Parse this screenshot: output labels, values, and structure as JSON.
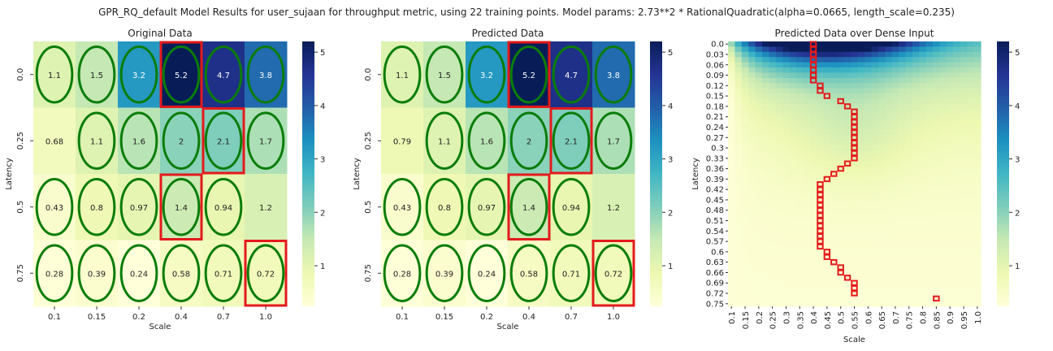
{
  "figure": {
    "suptitle": "GPR_RQ_default Model Results for user_sujaan for throughput metric, using 22 training points. Model params: 2.73**2 * RationalQuadratic(alpha=0.0665, length_scale=0.235)"
  },
  "colors": {
    "ellipse": "#0a7d0a",
    "highlight": "#e31a1c",
    "cmap": [
      "#ffffd9",
      "#edf8b1",
      "#c7e9b4",
      "#7fcdbb",
      "#41b6c4",
      "#1d91c0",
      "#225ea8",
      "#253494",
      "#081d58"
    ]
  },
  "chart_data": [
    {
      "type": "heatmap",
      "title": "Original Data",
      "xlabel": "Scale",
      "ylabel": "Latency",
      "x": [
        "0.1",
        "0.15",
        "0.2",
        "0.4",
        "0.7",
        "1.0"
      ],
      "y": [
        "0.0",
        "0.25",
        "0.5",
        "0.75"
      ],
      "values": [
        [
          1.1,
          1.5,
          3.2,
          5.2,
          4.7,
          3.8
        ],
        [
          0.68,
          1.1,
          1.6,
          2,
          2.1,
          1.7
        ],
        [
          0.43,
          0.8,
          0.97,
          1.4,
          0.94,
          1.2
        ],
        [
          0.28,
          0.39,
          0.24,
          0.58,
          0.71,
          0.72
        ]
      ],
      "value_labels": [
        [
          "1.1",
          "1.5",
          "3.2",
          "5.2",
          "4.7",
          "3.8"
        ],
        [
          "0.68",
          "1.1",
          "1.6",
          "2",
          "2.1",
          "1.7"
        ],
        [
          "0.43",
          "0.8",
          "0.97",
          "1.4",
          "0.94",
          "1.2"
        ],
        [
          "0.28",
          "0.39",
          "0.24",
          "0.58",
          "0.71",
          "0.72"
        ]
      ],
      "training_points": [
        [
          0,
          0
        ],
        [
          0,
          1
        ],
        [
          0,
          2
        ],
        [
          0,
          3
        ],
        [
          0,
          4
        ],
        [
          0,
          5
        ],
        [
          1,
          1
        ],
        [
          1,
          2
        ],
        [
          1,
          3
        ],
        [
          1,
          4
        ],
        [
          1,
          5
        ],
        [
          2,
          0
        ],
        [
          2,
          1
        ],
        [
          2,
          2
        ],
        [
          2,
          3
        ],
        [
          2,
          4
        ],
        [
          3,
          0
        ],
        [
          3,
          1
        ],
        [
          3,
          2
        ],
        [
          3,
          3
        ],
        [
          3,
          4
        ],
        [
          3,
          5
        ]
      ],
      "highlighted": [
        [
          0,
          3
        ],
        [
          1,
          4
        ],
        [
          2,
          3
        ],
        [
          3,
          5
        ]
      ],
      "vmin": 0.24,
      "vmax": 5.2,
      "colorbar_ticks": [
        "1",
        "2",
        "3",
        "4",
        "5"
      ]
    },
    {
      "type": "heatmap",
      "title": "Predicted Data",
      "xlabel": "Scale",
      "ylabel": "Latency",
      "x": [
        "0.1",
        "0.15",
        "0.2",
        "0.4",
        "0.7",
        "1.0"
      ],
      "y": [
        "0.0",
        "0.25",
        "0.5",
        "0.75"
      ],
      "values": [
        [
          1.1,
          1.5,
          3.2,
          5.2,
          4.7,
          3.8
        ],
        [
          0.79,
          1.1,
          1.6,
          2,
          2.1,
          1.7
        ],
        [
          0.43,
          0.8,
          0.97,
          1.4,
          0.94,
          1.2
        ],
        [
          0.28,
          0.39,
          0.24,
          0.58,
          0.71,
          0.72
        ]
      ],
      "value_labels": [
        [
          "1.1",
          "1.5",
          "3.2",
          "5.2",
          "4.7",
          "3.8"
        ],
        [
          "0.79",
          "1.1",
          "1.6",
          "2",
          "2.1",
          "1.7"
        ],
        [
          "0.43",
          "0.8",
          "0.97",
          "1.4",
          "0.94",
          "1.2"
        ],
        [
          "0.28",
          "0.39",
          "0.24",
          "0.58",
          "0.71",
          "0.72"
        ]
      ],
      "training_points": [
        [
          0,
          0
        ],
        [
          0,
          1
        ],
        [
          0,
          2
        ],
        [
          0,
          3
        ],
        [
          0,
          4
        ],
        [
          0,
          5
        ],
        [
          1,
          1
        ],
        [
          1,
          2
        ],
        [
          1,
          3
        ],
        [
          1,
          4
        ],
        [
          1,
          5
        ],
        [
          2,
          0
        ],
        [
          2,
          1
        ],
        [
          2,
          2
        ],
        [
          2,
          3
        ],
        [
          2,
          4
        ],
        [
          3,
          0
        ],
        [
          3,
          1
        ],
        [
          3,
          2
        ],
        [
          3,
          3
        ],
        [
          3,
          4
        ],
        [
          3,
          5
        ]
      ],
      "highlighted": [
        [
          0,
          3
        ],
        [
          1,
          4
        ],
        [
          2,
          3
        ],
        [
          3,
          5
        ]
      ],
      "vmin": 0.24,
      "vmax": 5.2,
      "colorbar_ticks": [
        "1",
        "2",
        "3",
        "4",
        "5"
      ]
    },
    {
      "type": "heatmap",
      "title": "Predicted Data over Dense Input",
      "xlabel": "Scale",
      "ylabel": "Latency",
      "x_ticks": [
        "0.1",
        "0.15",
        "0.2",
        "0.25",
        "0.3",
        "0.35",
        "0.4",
        "0.45",
        "0.5",
        "0.55",
        "0.6",
        "0.65",
        "0.7",
        "0.75",
        "0.8",
        "0.85",
        "0.9",
        "0.95",
        "1.0"
      ],
      "y_ticks": [
        "0.0",
        "0.03",
        "0.06",
        "0.09",
        "0.12",
        "0.15",
        "0.18",
        "0.21",
        "0.24",
        "0.27",
        "0.3",
        "0.33",
        "0.36",
        "0.39",
        "0.42",
        "0.45",
        "0.48",
        "0.51",
        "0.54",
        "0.57",
        "0.6",
        "0.63",
        "0.66",
        "0.69",
        "0.72",
        "0.75"
      ],
      "x_range": [
        0.1,
        1.0
      ],
      "y_range": [
        0.0,
        0.75
      ],
      "vmin": 0.24,
      "vmax": 5.2,
      "colorbar_ticks": [
        "1",
        "2",
        "3",
        "4",
        "5"
      ],
      "max_path": [
        [
          0.4,
          0.0
        ],
        [
          0.4,
          0.015
        ],
        [
          0.4,
          0.03
        ],
        [
          0.4,
          0.045
        ],
        [
          0.4,
          0.06
        ],
        [
          0.4,
          0.075
        ],
        [
          0.4,
          0.09
        ],
        [
          0.4,
          0.105
        ],
        [
          0.425,
          0.12
        ],
        [
          0.425,
          0.135
        ],
        [
          0.45,
          0.15
        ],
        [
          0.5,
          0.165
        ],
        [
          0.525,
          0.18
        ],
        [
          0.55,
          0.195
        ],
        [
          0.55,
          0.21
        ],
        [
          0.55,
          0.225
        ],
        [
          0.55,
          0.24
        ],
        [
          0.55,
          0.255
        ],
        [
          0.55,
          0.27
        ],
        [
          0.55,
          0.285
        ],
        [
          0.55,
          0.3
        ],
        [
          0.55,
          0.315
        ],
        [
          0.55,
          0.33
        ],
        [
          0.525,
          0.345
        ],
        [
          0.5,
          0.36
        ],
        [
          0.475,
          0.375
        ],
        [
          0.45,
          0.39
        ],
        [
          0.425,
          0.405
        ],
        [
          0.425,
          0.42
        ],
        [
          0.425,
          0.435
        ],
        [
          0.425,
          0.45
        ],
        [
          0.425,
          0.465
        ],
        [
          0.425,
          0.48
        ],
        [
          0.425,
          0.495
        ],
        [
          0.425,
          0.51
        ],
        [
          0.425,
          0.525
        ],
        [
          0.425,
          0.54
        ],
        [
          0.425,
          0.555
        ],
        [
          0.425,
          0.57
        ],
        [
          0.425,
          0.585
        ],
        [
          0.45,
          0.6
        ],
        [
          0.45,
          0.615
        ],
        [
          0.475,
          0.63
        ],
        [
          0.5,
          0.645
        ],
        [
          0.5,
          0.66
        ],
        [
          0.525,
          0.675
        ],
        [
          0.55,
          0.69
        ],
        [
          0.55,
          0.705
        ],
        [
          0.55,
          0.72
        ],
        [
          0.85,
          0.735
        ]
      ]
    }
  ]
}
